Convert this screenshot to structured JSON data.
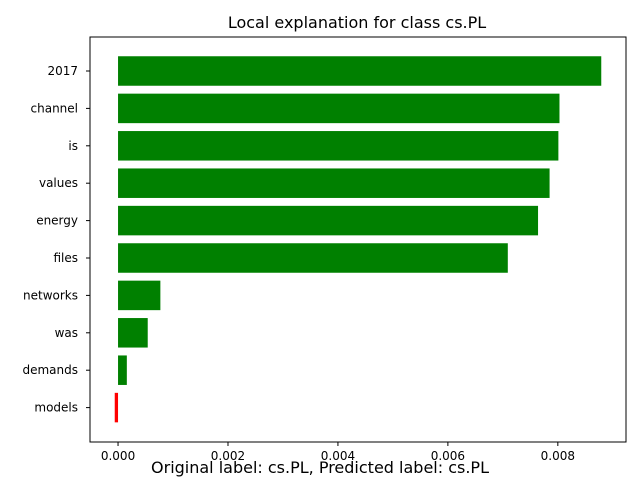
{
  "chart_data": {
    "type": "bar",
    "orientation": "horizontal",
    "title": "Local explanation for class cs.PL",
    "caption": "Original label: cs.PL, Predicted label: cs.PL",
    "categories": [
      "2017",
      "channel",
      "is",
      "values",
      "energy",
      "files",
      "networks",
      "was",
      "demands",
      "models"
    ],
    "values": [
      0.00879,
      0.00803,
      0.00801,
      0.00785,
      0.00764,
      0.00709,
      0.00077,
      0.00054,
      0.00016,
      -6e-05
    ],
    "xlim": [
      -0.00051,
      0.00924
    ],
    "xticks": [
      0.0,
      0.002,
      0.004,
      0.006,
      0.008
    ],
    "xtick_labels": [
      "0.000",
      "0.002",
      "0.004",
      "0.006",
      "0.008"
    ],
    "positive_color": "#008000",
    "negative_color": "#ff0000",
    "grid": false,
    "legend": "none"
  }
}
